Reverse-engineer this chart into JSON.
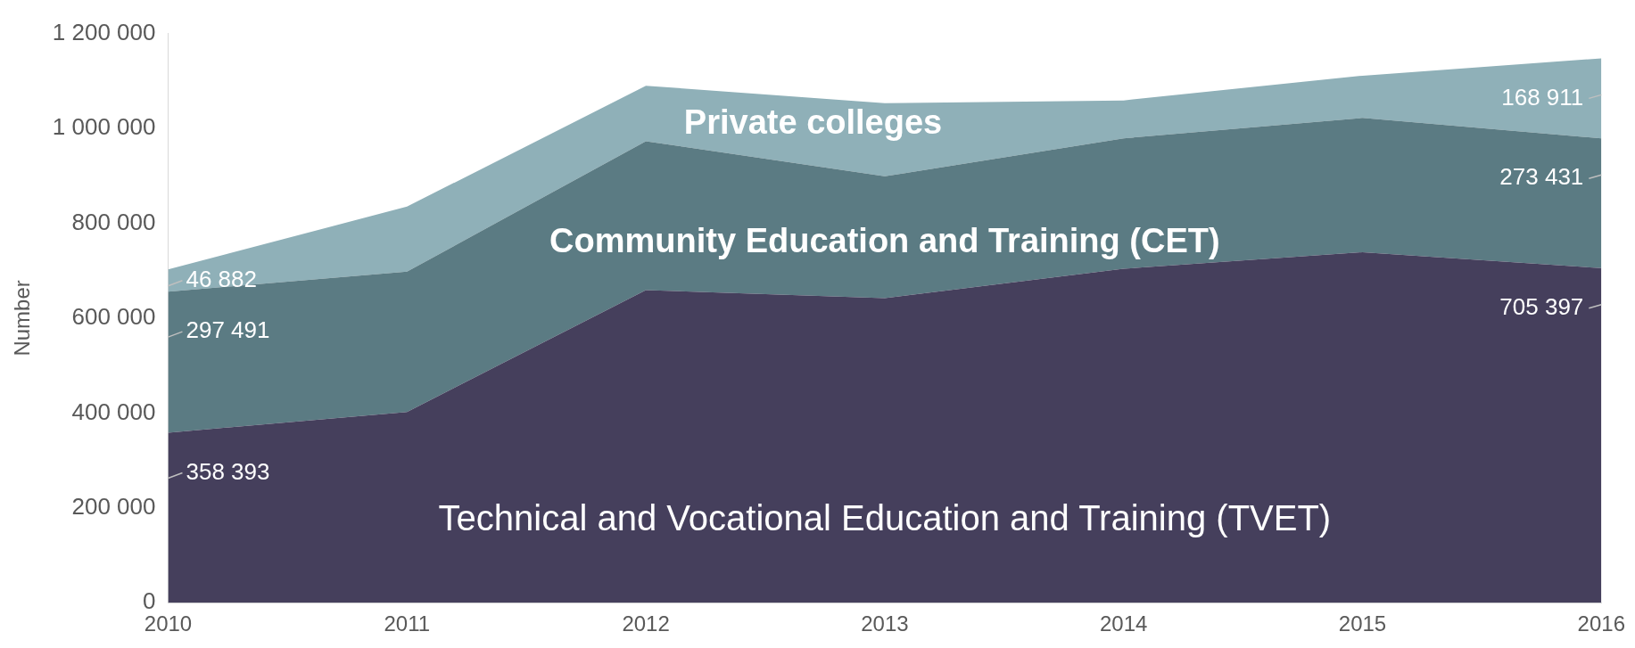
{
  "chart_data": {
    "type": "area",
    "stacked": true,
    "ylabel": "Number",
    "categories": [
      "2010",
      "2011",
      "2012",
      "2013",
      "2014",
      "2015",
      "2016"
    ],
    "series": [
      {
        "name": "Technical and Vocational Education and Training (TVET)",
        "color": "#453f5c",
        "values": [
          358393,
          402000,
          659000,
          642000,
          704000,
          739000,
          705397
        ],
        "value_labels": [
          "358 393",
          null,
          null,
          null,
          null,
          null,
          "705 397"
        ]
      },
      {
        "name": "Community Education and Training (CET)",
        "color": "#5b7b83",
        "values": [
          297491,
          296000,
          314000,
          257000,
          275000,
          283000,
          273431
        ],
        "value_labels": [
          "297 491",
          null,
          null,
          null,
          null,
          null,
          "273 431"
        ]
      },
      {
        "name": "Private colleges",
        "color": "#8fb0b8",
        "values": [
          46882,
          137000,
          117000,
          154000,
          80000,
          89000,
          168911
        ],
        "value_labels": [
          "46 882",
          null,
          null,
          null,
          null,
          null,
          "168 911"
        ]
      }
    ],
    "ylim": [
      0,
      1200000
    ],
    "yticks": [
      0,
      {
        "value": 200000,
        "label": "200 000"
      },
      {
        "value": 400000,
        "label": "400 000"
      },
      {
        "value": 600000,
        "label": "600 000"
      },
      {
        "value": 800000,
        "label": "800 000"
      },
      {
        "value": 1000000,
        "label": "1 000 000"
      },
      {
        "value": 1200000,
        "label": "1 200 000"
      }
    ],
    "grid": false,
    "legend": false
  }
}
